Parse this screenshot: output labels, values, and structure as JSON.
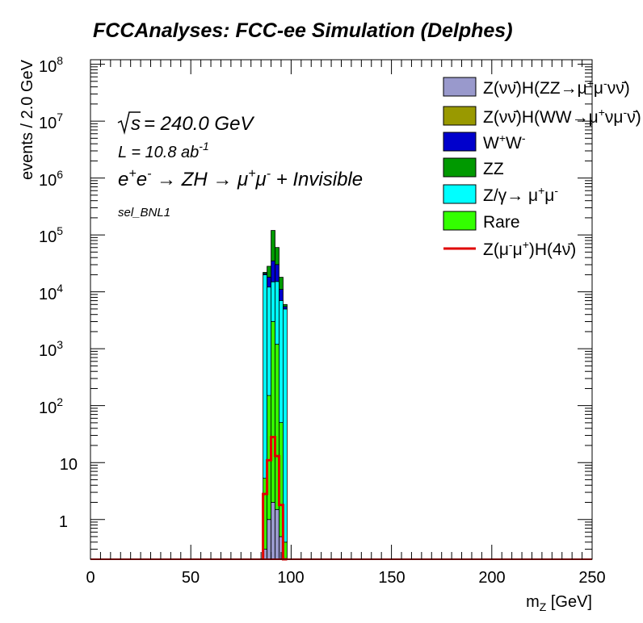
{
  "chart_data": {
    "type": "bar",
    "title": "FCCAnalyses: FCC-ee Simulation (Delphes)",
    "xlabel": "m",
    "xlabel_sub": "Z",
    "xlabel_unit": "[GeV]",
    "ylabel": "events / 2.0 GeV",
    "xlim": [
      0,
      250
    ],
    "ylim": [
      0.2,
      120000000
    ],
    "yscale": "log",
    "x_ticks": [
      "0",
      "50",
      "100",
      "150",
      "200",
      "250"
    ],
    "y_ticks": [
      "1",
      "10",
      "10^2",
      "10^3",
      "10^4",
      "10^5",
      "10^6",
      "10^7",
      "10^8"
    ],
    "bin_width": 2.0,
    "legend_position": "top-right",
    "annotations": {
      "sqrt_s": "= 240.0 GeV",
      "lumi_prefix": "L = 10.8 ab",
      "lumi_exp": "-1",
      "process": "e+e- → ZH → μ+μ- + Invisible",
      "selection": "sel_BNL1"
    },
    "bins": [
      86,
      88,
      90,
      92,
      94,
      96
    ],
    "stack_order_bottom_to_top": [
      "zh_zz",
      "zh_ww",
      "rare",
      "zgamma",
      "ww",
      "zz"
    ],
    "series": [
      {
        "key": "zh_zz",
        "name": "Z(νν̄)H(ZZ→μ+μ-νν̄)",
        "color": "#9999cc",
        "kind": "stack",
        "values": [
          0.3,
          1.0,
          2.0,
          1.5,
          0.5,
          0.1
        ]
      },
      {
        "key": "zh_ww",
        "name": "Z(νν̄)H(WW→μ+νμ-ν̄)",
        "color": "#999900",
        "kind": "stack",
        "values": [
          0.0,
          0.0,
          0.0,
          0.0,
          0.0,
          0.0
        ]
      },
      {
        "key": "rare",
        "name": "Rare",
        "color": "#33ff00",
        "kind": "stack",
        "values": [
          5,
          150,
          3000,
          1200,
          50,
          0.3
        ]
      },
      {
        "key": "zgamma",
        "name": "Z/γ→ μ+μ-",
        "color": "#00ffff",
        "kind": "stack",
        "values": [
          20000,
          12000,
          12000,
          14000,
          7000,
          5000
        ]
      },
      {
        "key": "ww",
        "name": "W+W-",
        "color": "#0000cc",
        "kind": "stack",
        "values": [
          1000,
          6000,
          20000,
          15000,
          4000,
          500
        ]
      },
      {
        "key": "zz",
        "name": "ZZ",
        "color": "#009900",
        "kind": "stack",
        "values": [
          1000,
          10000,
          85000,
          30000,
          7000,
          500
        ]
      },
      {
        "key": "signal",
        "name": "Z(μ-μ+)H(4ν)",
        "color": "#e00000",
        "kind": "line",
        "values": [
          2.8,
          11,
          28,
          13,
          1.8,
          0.0
        ]
      }
    ]
  }
}
